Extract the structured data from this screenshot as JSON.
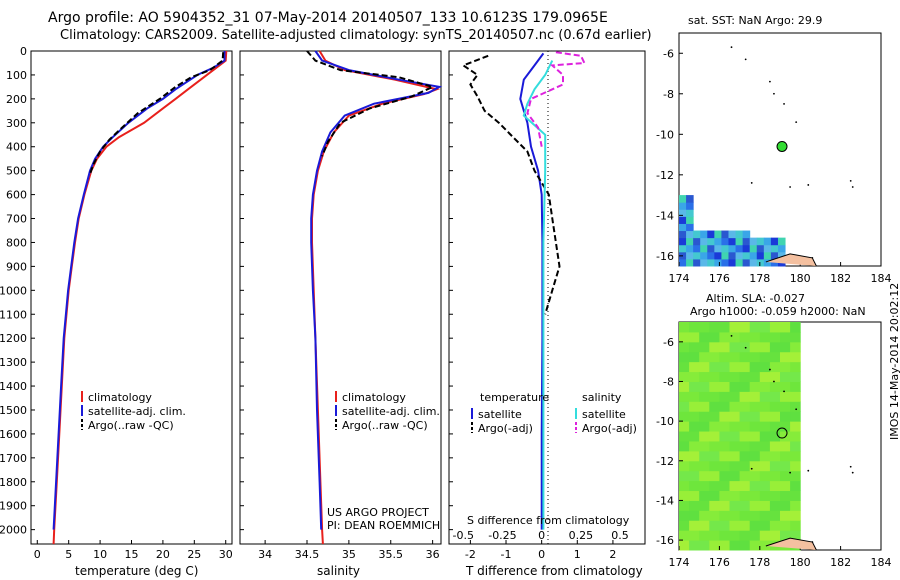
{
  "header": {
    "line1": "Argo profile: AO 5904352_31 07-May-2014 20140507_133 10.6123S 179.0965E",
    "line2": "Climatology: CARS2009. Satellite-adjusted climatology: synTS_20140507.nc (0.67d earlier)"
  },
  "colors": {
    "climatology": "#e8201c",
    "satellite": "#1a1ad8",
    "argo": "#000000",
    "sat_salinity": "#33dddd",
    "argo_salinity": "#dd22dd"
  },
  "depth_axis": {
    "ylim": [
      0,
      2060
    ],
    "ticks": [
      "0",
      "100",
      "200",
      "300",
      "400",
      "500",
      "600",
      "700",
      "800",
      "900",
      "1000",
      "1100",
      "1200",
      "1300",
      "1400",
      "1500",
      "1600",
      "1700",
      "1800",
      "1900",
      "2000"
    ]
  },
  "chart_data": [
    {
      "type": "line",
      "xlabel": "temperature (deg C)",
      "xlim": [
        -1,
        31
      ],
      "ylim": [
        0,
        2060
      ],
      "x_ticks": [
        "0",
        "5",
        "10",
        "15",
        "20",
        "25",
        "30"
      ],
      "legend": [
        "climatology",
        "satellite-adj. clim.",
        "Argo(..raw -QC)"
      ],
      "series": [
        {
          "name": "climatology",
          "points": [
            [
              30.1,
              0
            ],
            [
              30,
              40
            ],
            [
              29,
              60
            ],
            [
              27,
              100
            ],
            [
              24,
              160
            ],
            [
              22,
              200
            ],
            [
              20,
              240
            ],
            [
              17,
              300
            ],
            [
              13,
              360
            ],
            [
              11,
              400
            ],
            [
              9.5,
              450
            ],
            [
              8.6,
              500
            ],
            [
              7.5,
              600
            ],
            [
              6.6,
              700
            ],
            [
              6,
              800
            ],
            [
              5.5,
              900
            ],
            [
              5,
              1000
            ],
            [
              4.3,
              1200
            ],
            [
              3.9,
              1400
            ],
            [
              3.5,
              1600
            ],
            [
              3.1,
              1800
            ],
            [
              2.7,
              2000
            ],
            [
              2.6,
              2060
            ]
          ]
        },
        {
          "name": "satellite-adj. clim.",
          "points": [
            [
              29.8,
              0
            ],
            [
              29.8,
              40
            ],
            [
              28,
              70
            ],
            [
              25.5,
              100
            ],
            [
              22,
              160
            ],
            [
              20,
              200
            ],
            [
              17.5,
              240
            ],
            [
              14.5,
              300
            ],
            [
              12,
              360
            ],
            [
              10.5,
              400
            ],
            [
              9.2,
              450
            ],
            [
              8.4,
              500
            ],
            [
              7.4,
              600
            ],
            [
              6.5,
              700
            ],
            [
              5.9,
              800
            ],
            [
              5.4,
              900
            ],
            [
              4.9,
              1000
            ],
            [
              4.2,
              1200
            ],
            [
              3.8,
              1400
            ],
            [
              3.4,
              1600
            ],
            [
              3,
              1800
            ],
            [
              2.6,
              2000
            ]
          ]
        },
        {
          "name": "Argo(..raw -QC)",
          "dashed": true,
          "points": [
            [
              29.6,
              5
            ],
            [
              29.5,
              40
            ],
            [
              27.5,
              80
            ],
            [
              24.5,
              110
            ],
            [
              22,
              150
            ],
            [
              19.5,
              200
            ],
            [
              16,
              260
            ],
            [
              13.5,
              320
            ],
            [
              11.5,
              370
            ],
            [
              10,
              420
            ],
            [
              9,
              470
            ],
            [
              8.3,
              520
            ]
          ]
        }
      ]
    },
    {
      "type": "line",
      "xlabel": "salinity",
      "xlim": [
        33.7,
        36.1
      ],
      "ylim": [
        0,
        2060
      ],
      "x_ticks": [
        "34",
        "34.5",
        "35",
        "35.5",
        "36"
      ],
      "legend": [
        "climatology",
        "satellite-adj. clim.",
        "Argo(..raw -QC)"
      ],
      "series": [
        {
          "name": "climatology",
          "points": [
            [
              34.65,
              0
            ],
            [
              34.72,
              40
            ],
            [
              34.95,
              80
            ],
            [
              35.55,
              120
            ],
            [
              36.05,
              160
            ],
            [
              35.9,
              180
            ],
            [
              35.4,
              220
            ],
            [
              35.0,
              270
            ],
            [
              34.82,
              340
            ],
            [
              34.7,
              420
            ],
            [
              34.63,
              500
            ],
            [
              34.58,
              600
            ],
            [
              34.56,
              700
            ],
            [
              34.56,
              800
            ],
            [
              34.58,
              1000
            ],
            [
              34.6,
              1200
            ],
            [
              34.63,
              1500
            ],
            [
              34.66,
              1800
            ],
            [
              34.68,
              2000
            ],
            [
              34.69,
              2060
            ]
          ]
        },
        {
          "name": "satellite-adj. clim.",
          "points": [
            [
              34.6,
              0
            ],
            [
              34.68,
              40
            ],
            [
              35.0,
              80
            ],
            [
              35.6,
              120
            ],
            [
              36.08,
              150
            ],
            [
              35.95,
              175
            ],
            [
              35.3,
              220
            ],
            [
              34.95,
              270
            ],
            [
              34.78,
              340
            ],
            [
              34.68,
              420
            ],
            [
              34.62,
              500
            ],
            [
              34.57,
              600
            ],
            [
              34.55,
              700
            ],
            [
              34.55,
              800
            ],
            [
              34.57,
              1000
            ],
            [
              34.6,
              1200
            ],
            [
              34.62,
              1500
            ],
            [
              34.65,
              1800
            ],
            [
              34.67,
              2000
            ]
          ]
        },
        {
          "name": "Argo(..raw -QC)",
          "dashed": true,
          "points": [
            [
              34.5,
              0
            ],
            [
              34.6,
              40
            ],
            [
              34.9,
              80
            ],
            [
              35.6,
              110
            ],
            [
              36.0,
              150
            ],
            [
              35.75,
              190
            ],
            [
              35.25,
              240
            ],
            [
              34.9,
              300
            ],
            [
              34.75,
              380
            ],
            [
              34.68,
              440
            ]
          ]
        }
      ]
    },
    {
      "type": "line",
      "xlabel": "T difference from climatology",
      "xlabel_top": "S difference from climatology",
      "xlim": [
        -2.6,
        2.9
      ],
      "ylim": [
        0,
        2060
      ],
      "x_ticks": [
        "-2",
        "-1",
        "0",
        "1",
        "2"
      ],
      "x_ticks_s": [
        "-0.5",
        "-0.25",
        "0",
        "0.25",
        "0.5"
      ],
      "legend_headings": [
        "temperature",
        "salinity"
      ],
      "legend": [
        "satellite",
        "Argo(-adj)",
        "satellite",
        "Argo(-adj)"
      ],
      "series": [
        {
          "name": "satellite",
          "points": [
            [
              0.05,
              10
            ],
            [
              -0.2,
              60
            ],
            [
              -0.5,
              120
            ],
            [
              -0.6,
              200
            ],
            [
              -0.4,
              300
            ],
            [
              -0.3,
              400
            ],
            [
              -0.1,
              500
            ],
            [
              0,
              600
            ],
            [
              0.02,
              800
            ],
            [
              0.02,
              1200
            ],
            [
              0,
              1600
            ],
            [
              0,
              2000
            ]
          ]
        },
        {
          "name": "Argo(-adj)",
          "dashed": true,
          "points": [
            [
              -1.5,
              20
            ],
            [
              -2.2,
              60
            ],
            [
              -1.8,
              100
            ],
            [
              -2.0,
              140
            ],
            [
              -1.8,
              190
            ],
            [
              -1.6,
              250
            ],
            [
              -1.2,
              300
            ],
            [
              -0.8,
              360
            ],
            [
              -0.4,
              420
            ],
            [
              -0.2,
              500
            ],
            [
              0.2,
              600
            ],
            [
              0.3,
              700
            ],
            [
              0.4,
              800
            ],
            [
              0.5,
              900
            ],
            [
              0.3,
              1000
            ],
            [
              0.1,
              1100
            ]
          ]
        },
        {
          "name": "satellite",
          "points": [
            [
              0.3,
              40
            ],
            [
              0.1,
              100
            ],
            [
              -0.2,
              160
            ],
            [
              -0.4,
              220
            ],
            [
              -0.5,
              270
            ],
            [
              0.1,
              350
            ],
            [
              0.1,
              500
            ],
            [
              0.05,
              800
            ],
            [
              0.05,
              2000
            ]
          ]
        },
        {
          "name": "Argo(-adj)",
          "dashed": true,
          "points": [
            [
              0.4,
              5
            ],
            [
              1.1,
              20
            ],
            [
              1.2,
              50
            ],
            [
              0.3,
              60
            ],
            [
              0.6,
              100
            ],
            [
              0.6,
              140
            ],
            [
              -0.3,
              200
            ],
            [
              -0.4,
              260
            ],
            [
              -0.1,
              320
            ],
            [
              0,
              400
            ]
          ]
        }
      ]
    },
    {
      "type": "heatmap",
      "title": "sat. SST: NaN Argo: 29.9",
      "xlim": [
        174,
        184
      ],
      "ylim": [
        -16.5,
        -5
      ],
      "x_ticks": [
        "174",
        "176",
        "178",
        "180",
        "182",
        "184"
      ],
      "y_ticks": [
        "-6",
        "-8",
        "-10",
        "-12",
        "-14",
        "-16"
      ],
      "marker": {
        "lon": 179.1,
        "lat": -10.6
      }
    },
    {
      "type": "heatmap",
      "title": "Altim. SLA: -0.027",
      "subtitle": "Argo h1000: -0.059 h2000: NaN",
      "xlim": [
        174,
        184
      ],
      "ylim": [
        -16.5,
        -5
      ],
      "x_ticks": [
        "174",
        "176",
        "178",
        "180",
        "182",
        "184"
      ],
      "y_ticks": [
        "-6",
        "-8",
        "-10",
        "-12",
        "-14",
        "-16"
      ],
      "marker": {
        "lon": 179.1,
        "lat": -10.6
      }
    }
  ],
  "footer": {
    "project": "US ARGO PROJECT",
    "pi": "PI: DEAN ROEMMICH",
    "imos": "IMOS 14-May-2014 20:02:12"
  }
}
